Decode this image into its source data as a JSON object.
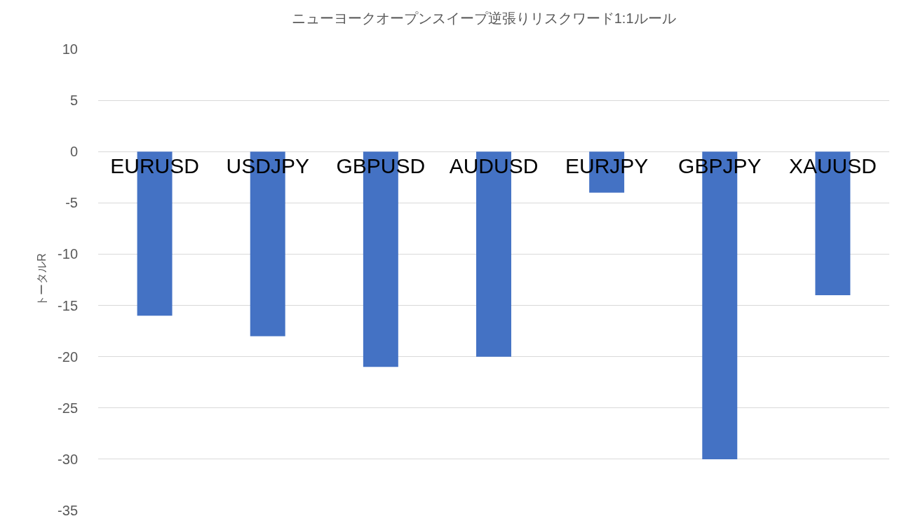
{
  "chart_data": {
    "type": "bar",
    "title": "ニューヨークオープンスイープ逆張りリスクワード1:1ルール",
    "ylabel": "トータルR",
    "categories": [
      "EURUSD",
      "USDJPY",
      "GBPUSD",
      "AUDUSD",
      "EURJPY",
      "GBPJPY",
      "XAUUSD"
    ],
    "values": [
      -16,
      -18,
      -21,
      -20,
      -4,
      -30,
      -14
    ],
    "color": "#4472c4",
    "ylim": [
      -35,
      10
    ],
    "yticks": [
      -35,
      -30,
      -25,
      -20,
      -15,
      -10,
      -5,
      0,
      5,
      10
    ],
    "grid": "y"
  }
}
